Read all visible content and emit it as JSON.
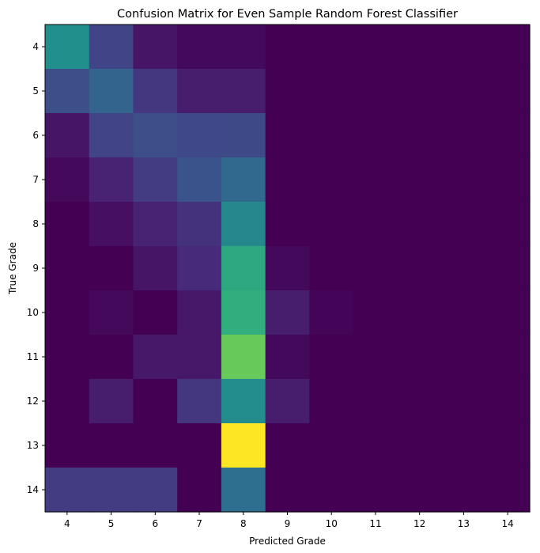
{
  "chart_data": {
    "type": "heatmap",
    "title": "Confusion Matrix for Even Sample Random Forest Classifier",
    "xlabel": "Predicted Grade",
    "ylabel": "True Grade",
    "x_categories": [
      "4",
      "5",
      "6",
      "7",
      "8",
      "9",
      "10",
      "11",
      "12",
      "13",
      "14"
    ],
    "y_categories": [
      "4",
      "5",
      "6",
      "7",
      "8",
      "9",
      "10",
      "11",
      "12",
      "13",
      "14"
    ],
    "colormap": "viridis",
    "color_range": [
      0,
      1
    ],
    "values": [
      [
        0.62,
        0.25,
        0.07,
        0.03,
        0.03,
        0,
        0,
        0,
        0,
        0,
        0
      ],
      [
        0.3,
        0.4,
        0.2,
        0.1,
        0.1,
        0,
        0,
        0,
        0,
        0,
        0
      ],
      [
        0.07,
        0.25,
        0.3,
        0.27,
        0.28,
        0,
        0,
        0,
        0,
        0,
        0
      ],
      [
        0.03,
        0.12,
        0.22,
        0.32,
        0.42,
        0,
        0,
        0,
        0,
        0,
        0
      ],
      [
        0,
        0.05,
        0.12,
        0.18,
        0.58,
        0,
        0,
        0,
        0,
        0,
        0
      ],
      [
        0,
        0,
        0.07,
        0.15,
        0.7,
        0.03,
        0,
        0,
        0,
        0,
        0
      ],
      [
        0,
        0.03,
        0,
        0.08,
        0.72,
        0.1,
        0.01,
        0,
        0,
        0,
        0
      ],
      [
        0,
        0,
        0.08,
        0.08,
        0.82,
        0.03,
        0,
        0,
        0,
        0,
        0
      ],
      [
        0,
        0.1,
        0,
        0.2,
        0.6,
        0.1,
        0,
        0,
        0,
        0,
        0
      ],
      [
        0,
        0,
        0,
        0,
        1.0,
        0,
        0,
        0,
        0,
        0,
        0
      ],
      [
        0.22,
        0.22,
        0.22,
        0,
        0.45,
        0,
        0,
        0,
        0,
        0,
        0
      ]
    ]
  }
}
